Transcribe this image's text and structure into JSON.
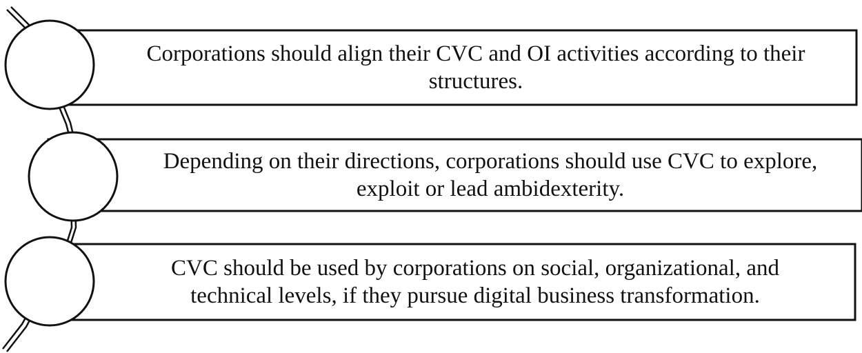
{
  "diagram": {
    "items": [
      {
        "text": "Corporations should align their CVC and OI activities according to their\nstructures."
      },
      {
        "text": "Depending on their directions, corporations should use CVC to explore,\nexploit or lead ambidexterity."
      },
      {
        "text": "CVC should be used by corporations on social, organizational, and\ntechnical levels, if they pursue digital business transformation."
      }
    ],
    "stroke_color": "#111111",
    "fill_color": "#ffffff"
  }
}
